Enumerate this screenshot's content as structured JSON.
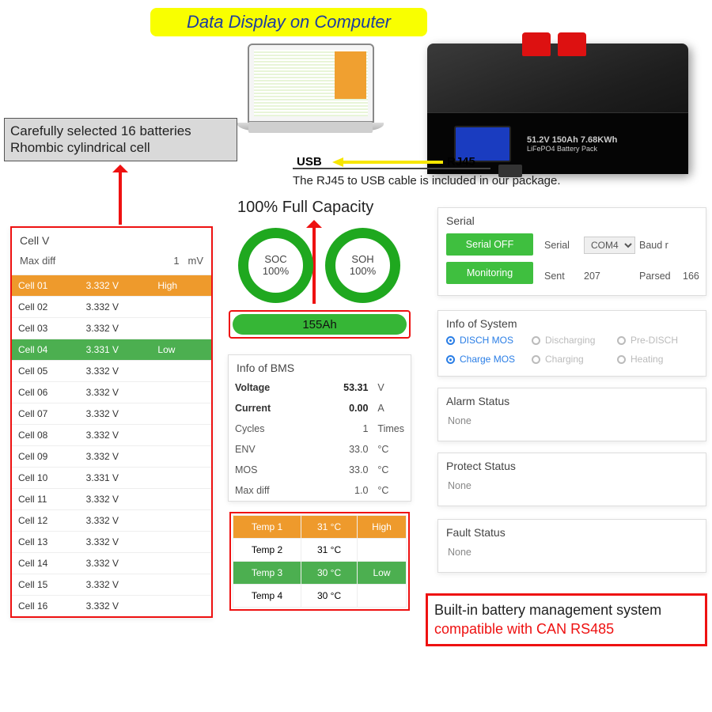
{
  "header": {
    "title": "Data Display on Computer"
  },
  "unit_label": {
    "line1": "51.2V 150Ah 7.68KWh",
    "line2": "LiFePO4 Battery Pack"
  },
  "info_box": {
    "line1": "Carefully selected 16 batteries",
    "line2": "Rhombic cylindrical cell"
  },
  "conn": {
    "usb": "USB",
    "rj45": "RJ45",
    "caption": "The RJ45 to USB cable is included in our package.",
    "arrow_color": "#f7e600"
  },
  "fullcap_label": "100% Full Capacity",
  "colors": {
    "accent_red": "#e11",
    "green": "#3fbf3f",
    "deep_green": "#1fa81f",
    "orange": "#ee9a2c",
    "row_green": "#4caf50",
    "blue_link": "#2a7ee6"
  },
  "cellv": {
    "title": "Cell V",
    "maxdiff_label": "Max diff",
    "maxdiff_value": "1",
    "maxdiff_unit": "mV",
    "rows": [
      {
        "name": "Cell 01",
        "v": "3.332 V",
        "tag": "High",
        "style": "orange"
      },
      {
        "name": "Cell 02",
        "v": "3.332 V",
        "tag": "",
        "style": ""
      },
      {
        "name": "Cell 03",
        "v": "3.332 V",
        "tag": "",
        "style": ""
      },
      {
        "name": "Cell 04",
        "v": "3.331 V",
        "tag": "Low",
        "style": "green"
      },
      {
        "name": "Cell 05",
        "v": "3.332 V",
        "tag": "",
        "style": ""
      },
      {
        "name": "Cell 06",
        "v": "3.332 V",
        "tag": "",
        "style": ""
      },
      {
        "name": "Cell 07",
        "v": "3.332 V",
        "tag": "",
        "style": ""
      },
      {
        "name": "Cell 08",
        "v": "3.332 V",
        "tag": "",
        "style": ""
      },
      {
        "name": "Cell 09",
        "v": "3.332 V",
        "tag": "",
        "style": ""
      },
      {
        "name": "Cell 10",
        "v": "3.331 V",
        "tag": "",
        "style": ""
      },
      {
        "name": "Cell 11",
        "v": "3.332 V",
        "tag": "",
        "style": ""
      },
      {
        "name": "Cell 12",
        "v": "3.332 V",
        "tag": "",
        "style": ""
      },
      {
        "name": "Cell 13",
        "v": "3.332 V",
        "tag": "",
        "style": ""
      },
      {
        "name": "Cell 14",
        "v": "3.332 V",
        "tag": "",
        "style": ""
      },
      {
        "name": "Cell 15",
        "v": "3.332 V",
        "tag": "",
        "style": ""
      },
      {
        "name": "Cell 16",
        "v": "3.332 V",
        "tag": "",
        "style": ""
      }
    ]
  },
  "rings": {
    "soc_label": "SOC",
    "soc_value": "100%",
    "soh_label": "SOH",
    "soh_value": "100%"
  },
  "ahbar": {
    "value": "155Ah"
  },
  "bms": {
    "title": "Info of BMS",
    "rows": [
      {
        "k": "Voltage",
        "v": "53.31",
        "u": "V",
        "bold": true
      },
      {
        "k": "Current",
        "v": "0.00",
        "u": "A",
        "bold": true
      },
      {
        "k": "Cycles",
        "v": "1",
        "u": "Times",
        "bold": false
      },
      {
        "k": "ENV",
        "v": "33.0",
        "u": "°C",
        "bold": false
      },
      {
        "k": "MOS",
        "v": "33.0",
        "u": "°C",
        "bold": false
      },
      {
        "k": "Max diff",
        "v": "1.0",
        "u": "°C",
        "bold": false
      }
    ]
  },
  "temps": {
    "rows": [
      {
        "name": "Temp 1",
        "v": "31 °C",
        "tag": "High",
        "style": "orange"
      },
      {
        "name": "Temp 2",
        "v": "31 °C",
        "tag": "",
        "style": ""
      },
      {
        "name": "Temp 3",
        "v": "30 °C",
        "tag": "Low",
        "style": "green"
      },
      {
        "name": "Temp 4",
        "v": "30 °C",
        "tag": "",
        "style": ""
      }
    ]
  },
  "serial": {
    "title": "Serial",
    "btn_off": "Serial OFF",
    "btn_mon": "Monitoring",
    "label_serial": "Serial",
    "port": "COM4",
    "label_baud": "Baud r",
    "label_sent": "Sent",
    "sent": "207",
    "label_parsed": "Parsed",
    "parsed": "166"
  },
  "sysinfo": {
    "title": "Info of System",
    "items": [
      {
        "label": "DISCH MOS",
        "state": "blue"
      },
      {
        "label": "Discharging",
        "state": "grey"
      },
      {
        "label": "Pre-DISCH",
        "state": "grey"
      },
      {
        "label": "Charge MOS",
        "state": "blue"
      },
      {
        "label": "Charging",
        "state": "grey"
      },
      {
        "label": "Heating",
        "state": "grey"
      }
    ]
  },
  "alarm": {
    "title": "Alarm Status",
    "value": "None"
  },
  "protect": {
    "title": "Protect Status",
    "value": "None"
  },
  "fault": {
    "title": "Fault Status",
    "value": "None"
  },
  "bms_callout": {
    "line1": "Built-in battery management system",
    "line2": "compatible with CAN RS485"
  }
}
